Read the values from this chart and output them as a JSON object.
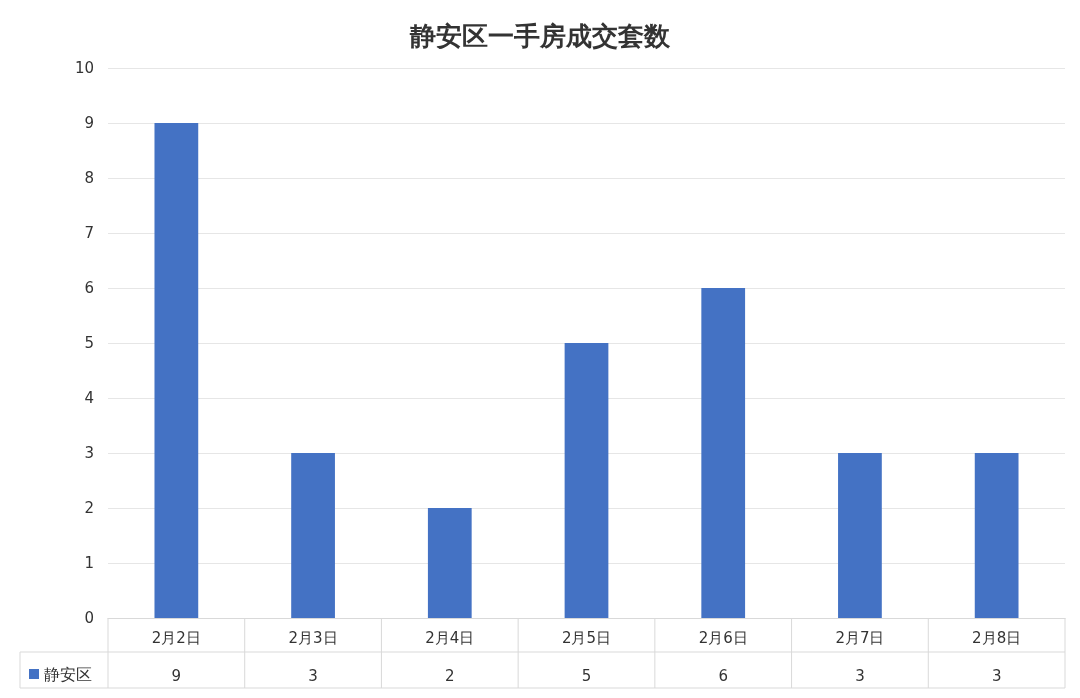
{
  "chart_data": {
    "type": "bar",
    "title": "静安区一手房成交套数",
    "categories": [
      "2月2日",
      "2月3日",
      "2月4日",
      "2月5日",
      "2月6日",
      "2月7日",
      "2月8日"
    ],
    "series": [
      {
        "name": "静安区",
        "color": "#4472c4",
        "values": [
          9,
          3,
          2,
          5,
          6,
          3,
          3
        ]
      }
    ],
    "ylim": [
      0,
      10
    ],
    "yticks": [
      0,
      1,
      2,
      3,
      4,
      5,
      6,
      7,
      8,
      9,
      10
    ],
    "grid": "y",
    "legend": "bottom left",
    "data_labels": true
  }
}
